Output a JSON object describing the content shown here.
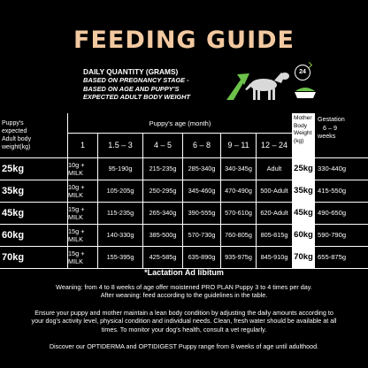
{
  "title": "FEEDING GUIDE",
  "daily_quantity": {
    "heading": "DAILY QUANTITY (GRAMS)",
    "sub": [
      "BASED ON PREGNANCY STAGE -",
      "BASED ON AGE AND PUPPY'S",
      "EXPECTED ADULT BODY WEIGHT"
    ]
  },
  "icons": {
    "clock_label": "24",
    "arrow": "green-arrow-icon",
    "dog": "dog-icon",
    "bowl": "food-bowl-icon"
  },
  "colors": {
    "title": "#f2c9a0",
    "accent": "#6cc24a",
    "background": "#000000"
  },
  "table": {
    "left_header": [
      "Puppy's",
      "expected",
      "Adult body",
      "weight(kg)"
    ],
    "age_header": "Puppy's age (month)",
    "age_columns": [
      "1",
      "1.5 – 3",
      "4 – 5",
      "6 – 8",
      "9 – 11",
      "12 – 24"
    ],
    "mother_header": [
      "Mother",
      "Body",
      "Weight",
      "(kg)"
    ],
    "gestation_header": [
      "Gestation",
      "6 – 9",
      "weeks"
    ],
    "rows": [
      {
        "weight": "25kg",
        "values": [
          "10g + MILK",
          "95-190g",
          "215-235g",
          "285-340g",
          "340-345g",
          "Adult"
        ],
        "mother": "25kg",
        "gestation": "330-440g"
      },
      {
        "weight": "35kg",
        "values": [
          "10g + MILK",
          "105-205g",
          "250-295g",
          "345-460g",
          "470-490g",
          "500-Adult"
        ],
        "mother": "35kg",
        "gestation": "415-550g"
      },
      {
        "weight": "45kg",
        "values": [
          "15g + MILK",
          "115-235g",
          "265-340g",
          "390-555g",
          "570-610g",
          "620-Adult"
        ],
        "mother": "45kg",
        "gestation": "490-650g"
      },
      {
        "weight": "60kg",
        "values": [
          "15g + MILK",
          "140-330g",
          "385-500g",
          "570-730g",
          "760-805g",
          "805-815g"
        ],
        "mother": "60kg",
        "gestation": "590-790g"
      },
      {
        "weight": "70kg",
        "values": [
          "15g + MILK",
          "155-395g",
          "425-585g",
          "635-890g",
          "935-975g",
          "845-910g"
        ],
        "mother": "70kg",
        "gestation": "655-875g"
      }
    ]
  },
  "lactation_note": "*Lactation Ad libitum",
  "paragraphs": [
    [
      "Weaning: from 4 to 8 weeks of age offer moistened PRO PLAN Puppy 3 to 4 times per day.",
      "After weaning: feed according to the guidelines in the table."
    ],
    [
      "Ensure your puppy and mother maintain a lean body condition by adjusting the daily amounts according to",
      "your dog's activity level, physical condition and individual needs. Clean, fresh water should be available at all",
      "times. To monitor your dog's health, consult a vet regularly."
    ],
    [
      "Discover our OPTIDERMA and OPTIDIGEST Puppy range from 8 weeks of age until adulthood."
    ]
  ]
}
